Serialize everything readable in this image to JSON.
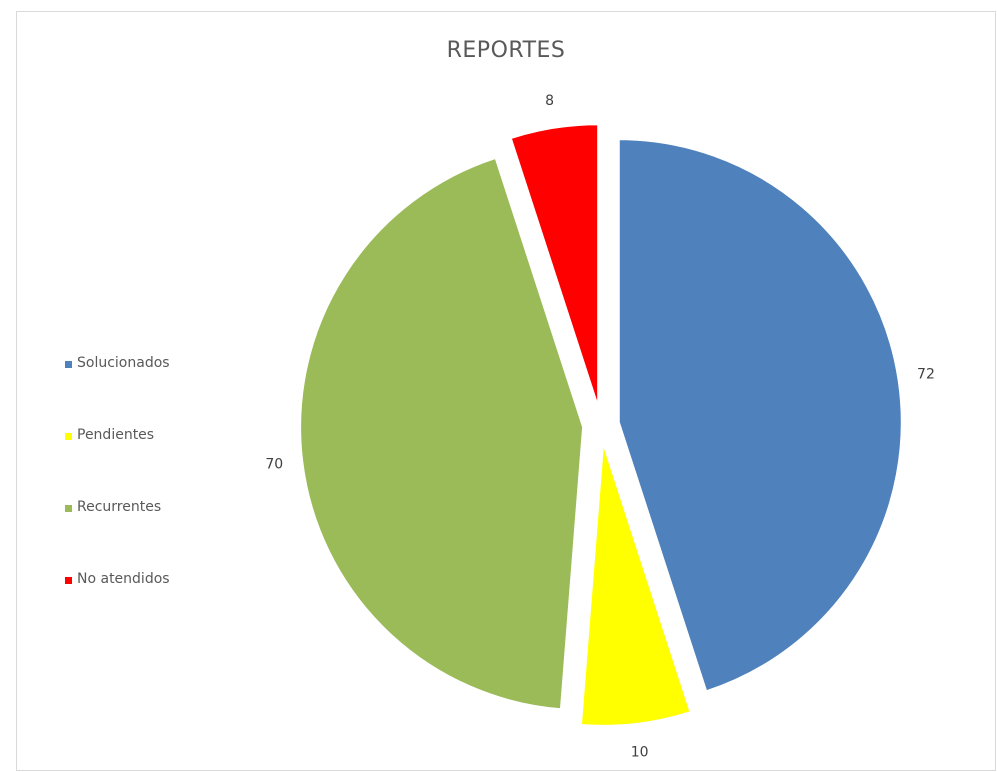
{
  "chart_data": {
    "type": "pie",
    "title": "REPORTES",
    "categories": [
      "Solucionados",
      "Pendientes",
      "Recurrentes",
      "No atendidos"
    ],
    "values": [
      72,
      10,
      70,
      8
    ],
    "colors": [
      "#4f81bd",
      "#ffff00",
      "#9bbb59",
      "#ff0000"
    ],
    "start_angle_deg": 0,
    "direction": "clockwise",
    "exploded": true,
    "data_labels": "outside",
    "legend_position": "left"
  }
}
